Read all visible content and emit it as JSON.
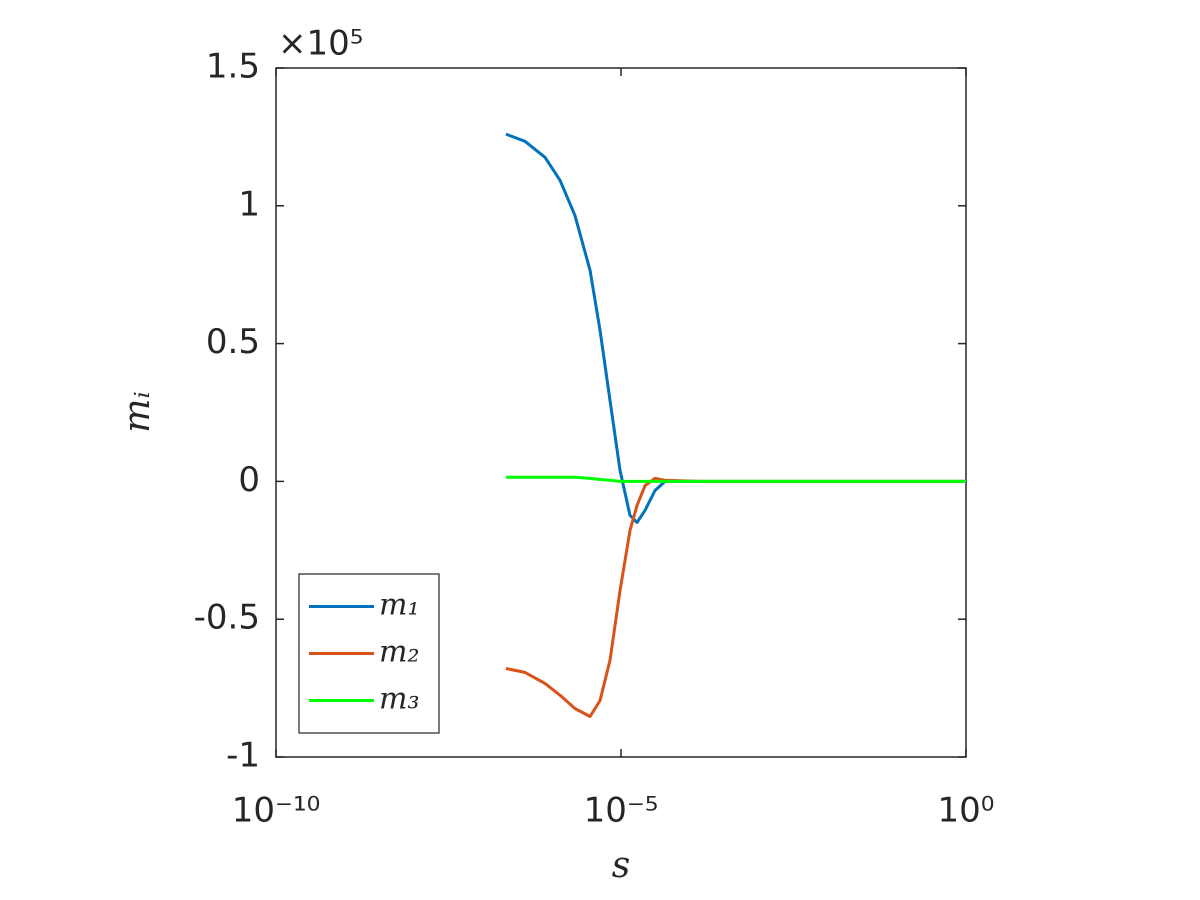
{
  "chart_data": {
    "type": "line",
    "x": [
      2.15e-07,
      4.06e-07,
      7.92e-07,
      1.31e-06,
      2.15e-06,
      3.56e-06,
      4.97e-06,
      6.93e-06,
      9.68e-06,
      1.35e-05,
      1.71e-05,
      2.23e-05,
      3.11e-05,
      4.35e-05,
      0.00014,
      0.00393,
      1
    ],
    "series": [
      {
        "name": "m₁",
        "color": "#0072bd",
        "values": [
          1.26,
          1.234,
          1.176,
          1.092,
          0.965,
          0.766,
          0.548,
          0.294,
          0.04,
          -0.123,
          -0.149,
          -0.105,
          -0.033,
          0,
          0,
          0,
          0
        ]
      },
      {
        "name": "m₂",
        "color": "#d95319",
        "values": [
          -0.679,
          -0.693,
          -0.733,
          -0.776,
          -0.824,
          -0.853,
          -0.795,
          -0.649,
          -0.396,
          -0.178,
          -0.087,
          -0.015,
          0.011,
          0.004,
          0,
          0,
          0
        ]
      },
      {
        "name": "m₃",
        "color": "#00ff00",
        "values": [
          0.015,
          0.015,
          0.015,
          0.015,
          0.015,
          0.011,
          0.007,
          0.004,
          0,
          0,
          0,
          0,
          0,
          0,
          0,
          0,
          0
        ]
      }
    ],
    "x_label": "s",
    "y_label": "mᵢ",
    "y_multiplier": "×10⁵",
    "x_scale": "log",
    "xlim": [
      1e-10,
      1
    ],
    "xticks": [
      {
        "value": 1e-10,
        "label": "10⁻¹⁰"
      },
      {
        "value": 1e-05,
        "label": "10⁻⁵"
      },
      {
        "value": 1,
        "label": "10⁰"
      }
    ],
    "ylim": [
      -1,
      1.5
    ],
    "yticks": [
      -1,
      -0.5,
      0,
      0.5,
      1,
      1.5
    ],
    "grid": false,
    "legend_position": "lower-left"
  }
}
